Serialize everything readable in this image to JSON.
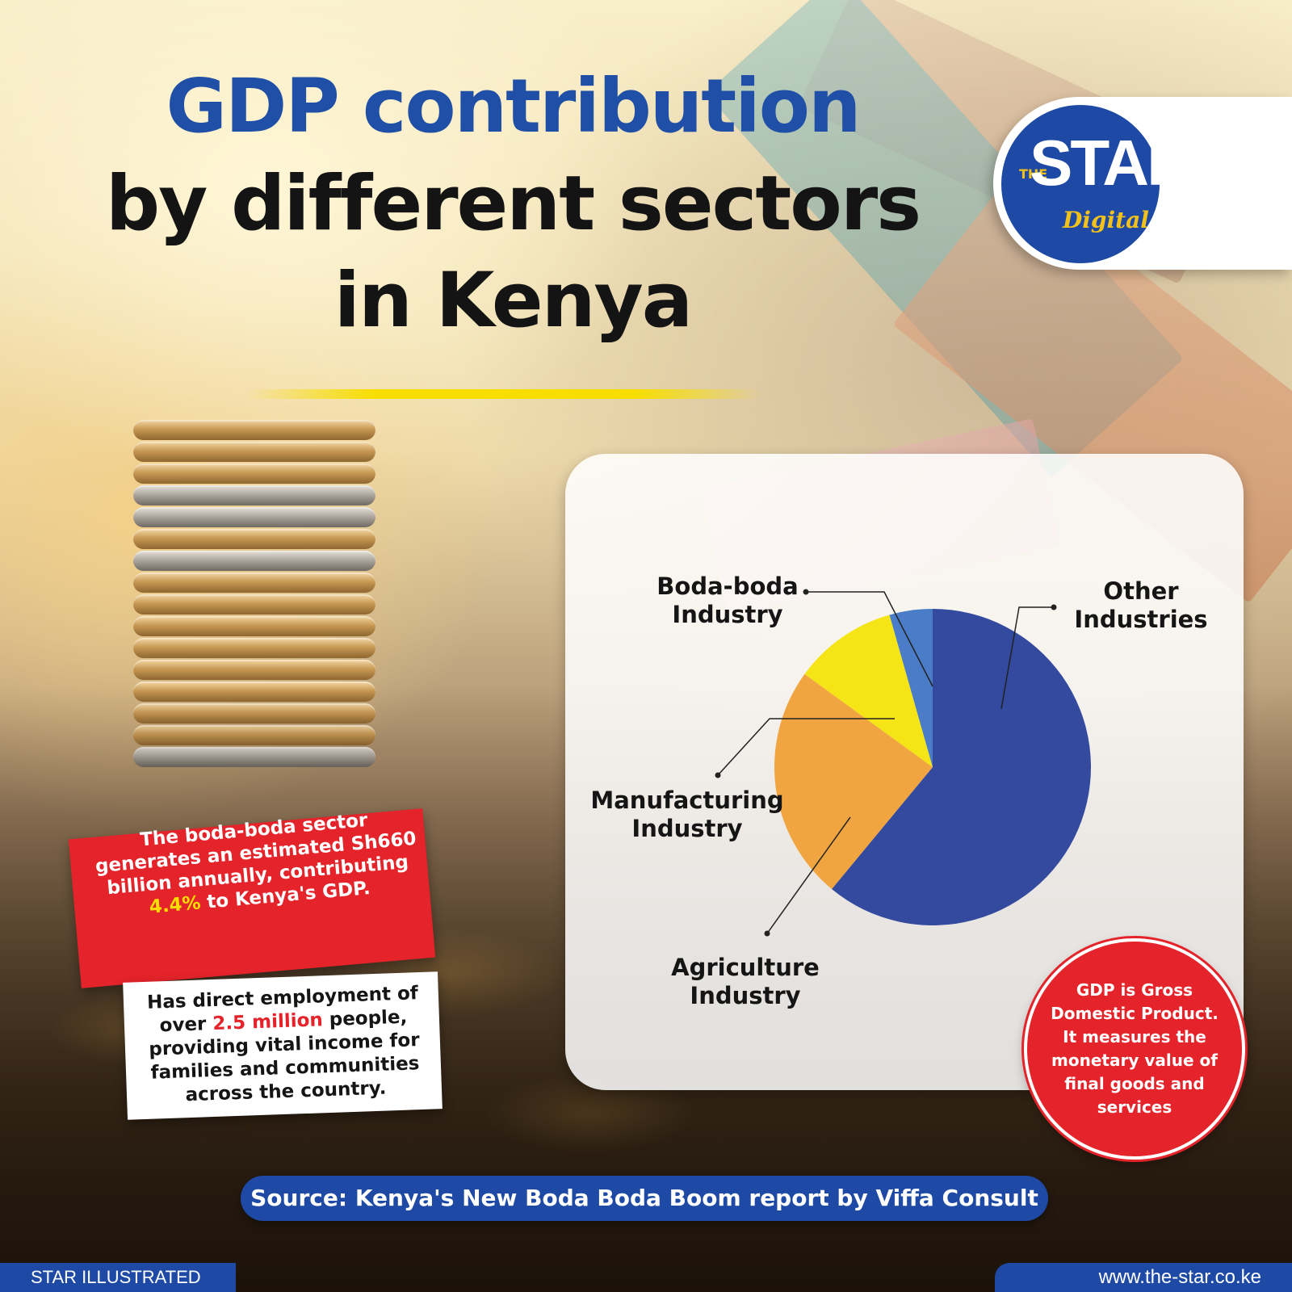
{
  "title": {
    "line1": "GDP contribution",
    "line2": "by different sectors",
    "line3": "in Kenya"
  },
  "logo": {
    "the": "THE",
    "star": "STAR",
    "digital": "Digital"
  },
  "colors": {
    "brand_blue": "#1e4aa6",
    "accent_yellow": "#f7de00",
    "alert_red": "#e4232a"
  },
  "chart_data": {
    "type": "pie",
    "title": "",
    "slices": [
      {
        "label": "Other Industries",
        "label_lines": [
          "Other",
          "Industries"
        ],
        "value": 61,
        "color": "#334a9e"
      },
      {
        "label": "Agriculture Industry",
        "label_lines": [
          "Agriculture",
          "Industry"
        ],
        "value": 24,
        "color": "#f0a540"
      },
      {
        "label": "Manufacturing Industry",
        "label_lines": [
          "Manufacturing",
          "Industry"
        ],
        "value": 10.6,
        "color": "#f6e516"
      },
      {
        "label": "Boda-boda Industry",
        "label_lines": [
          "Boda-boda",
          "Industry"
        ],
        "value": 4.4,
        "color": "#4a7cc7"
      }
    ],
    "start_angle_deg": 0,
    "direction": "clockwise",
    "legend": "callout labels"
  },
  "fact_red": {
    "text_before": "The boda-boda sector generates an estimated Sh660 billion annually, contributing ",
    "highlight": "4.4%",
    "text_after": " to Kenya's GDP."
  },
  "fact_white": {
    "text_before": "Has direct employment of over ",
    "highlight": "2.5 million",
    "text_after": " people, providing vital income for families and communities across the country."
  },
  "gdp_note": "GDP is Gross Domestic Product. It measures the monetary value of final goods and services",
  "source": "Source: Kenya's New Boda Boda Boom report by Viffa Consult",
  "footer": {
    "left": "STAR ILLUSTRATED",
    "right": "www.the-star.co.ke"
  }
}
